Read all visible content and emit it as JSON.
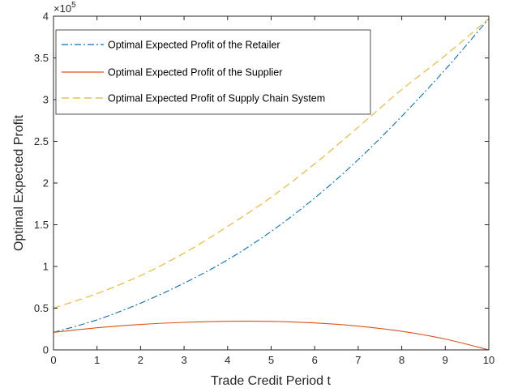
{
  "chart_data": {
    "type": "line",
    "title": "",
    "xlabel": "Trade Credit Period  t",
    "ylabel": "Optimal Expected Profit",
    "xlim": [
      0,
      10
    ],
    "ylim": [
      0,
      400000
    ],
    "x_ticks": [
      0,
      1,
      2,
      3,
      4,
      5,
      6,
      7,
      8,
      9,
      10
    ],
    "y_ticks": [
      0,
      50000,
      100000,
      150000,
      200000,
      250000,
      300000,
      350000,
      400000
    ],
    "y_tick_labels": [
      "0",
      "0.5",
      "1",
      "1.5",
      "2",
      "2.5",
      "3",
      "3.5",
      "4"
    ],
    "y_exponent_label": "×10",
    "y_exponent_power": "5",
    "grid": false,
    "legend_position": "top-left",
    "x": [
      0,
      1,
      2,
      3,
      4,
      5,
      6,
      7,
      8,
      9,
      10
    ],
    "series": [
      {
        "name": "Optimal Expected Profit of the Retailer",
        "color": "#0072BD",
        "style": "dash-dot",
        "values": [
          21000,
          36000,
          56000,
          80000,
          108000,
          142000,
          182000,
          228000,
          280000,
          336000,
          397000
        ]
      },
      {
        "name": "Optimal Expected Profit of the Supplier",
        "color": "#D95319",
        "style": "solid",
        "values": [
          21000,
          26500,
          30500,
          33000,
          34300,
          34200,
          32300,
          28500,
          22300,
          13000,
          0
        ]
      },
      {
        "name": "Optimal Expected Profit of Supply Chain System",
        "color": "#EDB120",
        "style": "dashed",
        "values": [
          50000,
          67500,
          89000,
          116000,
          148000,
          183000,
          223000,
          267000,
          312000,
          353000,
          397000
        ]
      }
    ]
  }
}
